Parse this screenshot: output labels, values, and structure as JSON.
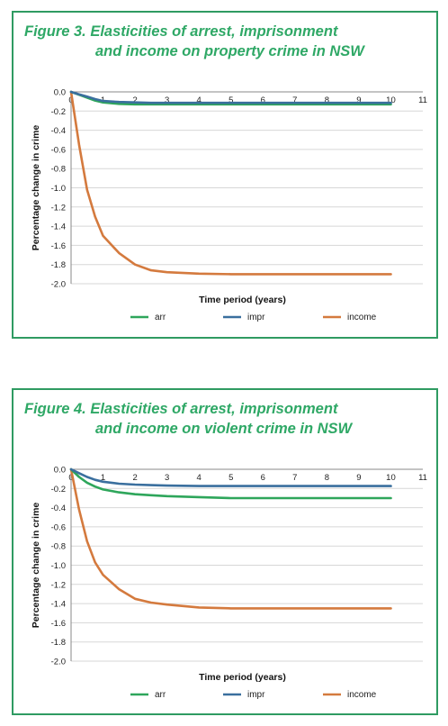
{
  "colors": {
    "border": "#2f9b62",
    "title": "#2fa866",
    "arr": "#2ea65b",
    "impr": "#3a6f9e",
    "income": "#d47a3e",
    "grid": "#d7d7d7"
  },
  "figures": [
    {
      "title_line1": "Figure 3. Elasticities of arrest, imprisonment",
      "title_line2": "and income on property crime in NSW"
    },
    {
      "title_line1": "Figure 4. Elasticities of arrest, imprisonment",
      "title_line2": "and income on violent crime in NSW"
    }
  ],
  "chart_data": [
    {
      "type": "line",
      "title": "Figure 3. Elasticities of arrest, imprisonment and income on property crime in NSW",
      "xlabel": "Time period (years)",
      "ylabel": "Percentage change in crime",
      "x_ticks": [
        "0",
        "1",
        "2",
        "3",
        "4",
        "5",
        "6",
        "7",
        "8",
        "9",
        "10",
        "11"
      ],
      "y_ticks": [
        "0.0",
        "-0.2",
        "-0.4",
        "-0.6",
        "-0.8",
        "-1.0",
        "-1.2",
        "-1.4",
        "-1.6",
        "-1.8",
        "-2.0"
      ],
      "xlim": [
        0,
        11
      ],
      "ylim": [
        -2.0,
        0.0
      ],
      "grid": true,
      "legend_position": "bottom",
      "x": [
        0,
        0.25,
        0.5,
        0.75,
        1,
        1.5,
        2,
        2.5,
        3,
        4,
        5,
        6,
        7,
        8,
        9,
        10
      ],
      "series": [
        {
          "name": "arr",
          "color": "#2ea65b",
          "values": [
            0,
            -0.03,
            -0.06,
            -0.09,
            -0.11,
            -0.125,
            -0.13,
            -0.13,
            -0.13,
            -0.13,
            -0.13,
            -0.13,
            -0.13,
            -0.13,
            -0.13,
            -0.13
          ]
        },
        {
          "name": "impr",
          "color": "#3a6f9e",
          "values": [
            0,
            -0.025,
            -0.05,
            -0.075,
            -0.095,
            -0.105,
            -0.11,
            -0.115,
            -0.115,
            -0.115,
            -0.115,
            -0.115,
            -0.115,
            -0.115,
            -0.115,
            -0.115
          ]
        },
        {
          "name": "income",
          "color": "#d47a3e",
          "values": [
            0,
            -0.55,
            -1.02,
            -1.3,
            -1.5,
            -1.68,
            -1.8,
            -1.86,
            -1.88,
            -1.895,
            -1.9,
            -1.9,
            -1.9,
            -1.9,
            -1.9,
            -1.9
          ]
        }
      ]
    },
    {
      "type": "line",
      "title": "Figure 4. Elasticities of arrest, imprisonment and income on violent crime in NSW",
      "xlabel": "Time period (years)",
      "ylabel": "Percentage change in crime",
      "x_ticks": [
        "0",
        "1",
        "2",
        "3",
        "4",
        "5",
        "6",
        "7",
        "8",
        "9",
        "10",
        "11"
      ],
      "y_ticks": [
        "0.0",
        "-0.2",
        "-0.4",
        "-0.6",
        "-0.8",
        "-1.0",
        "-1.2",
        "-1.4",
        "-1.6",
        "-1.8",
        "-2.0"
      ],
      "xlim": [
        0,
        11
      ],
      "ylim": [
        -2.0,
        0.0
      ],
      "grid": true,
      "legend_position": "bottom",
      "x": [
        0,
        0.25,
        0.5,
        0.75,
        1,
        1.5,
        2,
        2.5,
        3,
        4,
        5,
        6,
        7,
        8,
        9,
        10
      ],
      "series": [
        {
          "name": "arr",
          "color": "#2ea65b",
          "values": [
            0,
            -0.08,
            -0.14,
            -0.18,
            -0.21,
            -0.24,
            -0.26,
            -0.27,
            -0.28,
            -0.29,
            -0.3,
            -0.3,
            -0.3,
            -0.3,
            -0.3,
            -0.3
          ]
        },
        {
          "name": "impr",
          "color": "#3a6f9e",
          "values": [
            0,
            -0.04,
            -0.08,
            -0.11,
            -0.13,
            -0.15,
            -0.16,
            -0.165,
            -0.17,
            -0.175,
            -0.175,
            -0.175,
            -0.175,
            -0.175,
            -0.175,
            -0.175
          ]
        },
        {
          "name": "income",
          "color": "#d47a3e",
          "values": [
            0,
            -0.42,
            -0.75,
            -0.97,
            -1.1,
            -1.25,
            -1.35,
            -1.39,
            -1.41,
            -1.44,
            -1.45,
            -1.45,
            -1.45,
            -1.45,
            -1.45,
            -1.45
          ]
        }
      ]
    }
  ]
}
